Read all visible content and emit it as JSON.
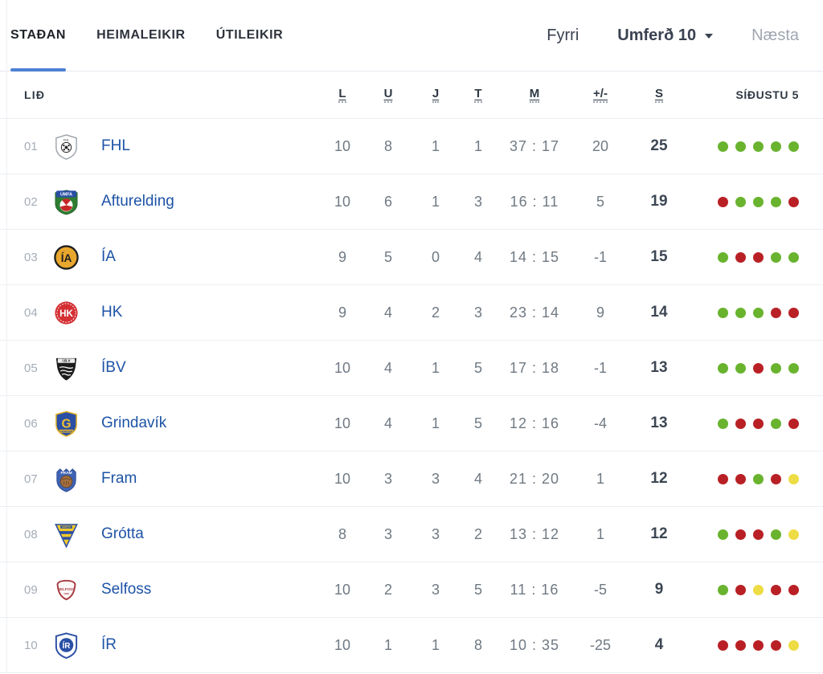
{
  "tabs": [
    {
      "label": "STAÐAN",
      "active": true
    },
    {
      "label": "HEIMALEIKIR",
      "active": false
    },
    {
      "label": "ÚTILEIKIR",
      "active": false
    }
  ],
  "round_nav": {
    "prev_label": "Fyrri",
    "current_label": "Umferð 10",
    "next_label": "Næsta"
  },
  "table": {
    "headers": {
      "team": "LIÐ",
      "played": "L",
      "wins": "U",
      "draws": "J",
      "losses": "T",
      "goals": "M",
      "diff": "+/-",
      "points": "S",
      "last5": "SÍÐUSTU 5"
    },
    "rows": [
      {
        "pos": "01",
        "team": "FHL",
        "logo": "fhl",
        "played": "10",
        "wins": "8",
        "draws": "1",
        "losses": "1",
        "goals": "37 : 17",
        "diff": "20",
        "points": "25",
        "form": [
          "w",
          "w",
          "w",
          "w",
          "w"
        ]
      },
      {
        "pos": "02",
        "team": "Afturelding",
        "logo": "afturelding",
        "played": "10",
        "wins": "6",
        "draws": "1",
        "losses": "3",
        "goals": "16 : 11",
        "diff": "5",
        "points": "19",
        "form": [
          "l",
          "w",
          "w",
          "w",
          "l"
        ]
      },
      {
        "pos": "03",
        "team": "ÍA",
        "logo": "ia",
        "played": "9",
        "wins": "5",
        "draws": "0",
        "losses": "4",
        "goals": "14 : 15",
        "diff": "-1",
        "points": "15",
        "form": [
          "w",
          "l",
          "l",
          "w",
          "w"
        ]
      },
      {
        "pos": "04",
        "team": "HK",
        "logo": "hk",
        "played": "9",
        "wins": "4",
        "draws": "2",
        "losses": "3",
        "goals": "23 : 14",
        "diff": "9",
        "points": "14",
        "form": [
          "w",
          "w",
          "w",
          "l",
          "l"
        ]
      },
      {
        "pos": "05",
        "team": "ÍBV",
        "logo": "ibv",
        "played": "10",
        "wins": "4",
        "draws": "1",
        "losses": "5",
        "goals": "17 : 18",
        "diff": "-1",
        "points": "13",
        "form": [
          "w",
          "w",
          "l",
          "w",
          "w"
        ]
      },
      {
        "pos": "06",
        "team": "Grindavík",
        "logo": "grindavik",
        "played": "10",
        "wins": "4",
        "draws": "1",
        "losses": "5",
        "goals": "12 : 16",
        "diff": "-4",
        "points": "13",
        "form": [
          "w",
          "l",
          "l",
          "w",
          "l"
        ]
      },
      {
        "pos": "07",
        "team": "Fram",
        "logo": "fram",
        "played": "10",
        "wins": "3",
        "draws": "3",
        "losses": "4",
        "goals": "21 : 20",
        "diff": "1",
        "points": "12",
        "form": [
          "l",
          "l",
          "w",
          "l",
          "d"
        ]
      },
      {
        "pos": "08",
        "team": "Grótta",
        "logo": "grotta",
        "played": "8",
        "wins": "3",
        "draws": "3",
        "losses": "2",
        "goals": "13 : 12",
        "diff": "1",
        "points": "12",
        "form": [
          "w",
          "l",
          "l",
          "w",
          "d"
        ]
      },
      {
        "pos": "09",
        "team": "Selfoss",
        "logo": "selfoss",
        "played": "10",
        "wins": "2",
        "draws": "3",
        "losses": "5",
        "goals": "11 : 16",
        "diff": "-5",
        "points": "9",
        "form": [
          "w",
          "l",
          "d",
          "l",
          "l"
        ]
      },
      {
        "pos": "10",
        "team": "ÍR",
        "logo": "ir",
        "played": "10",
        "wins": "1",
        "draws": "1",
        "losses": "8",
        "goals": "10 : 35",
        "diff": "-25",
        "points": "4",
        "form": [
          "l",
          "l",
          "l",
          "l",
          "d"
        ]
      }
    ]
  },
  "form_colors": {
    "w": "#69b32e",
    "l": "#b92025",
    "d": "#eedc44"
  },
  "accent_colors": {
    "active_tab_underline": "#4d81d3",
    "team_link": "#1d53a6"
  }
}
